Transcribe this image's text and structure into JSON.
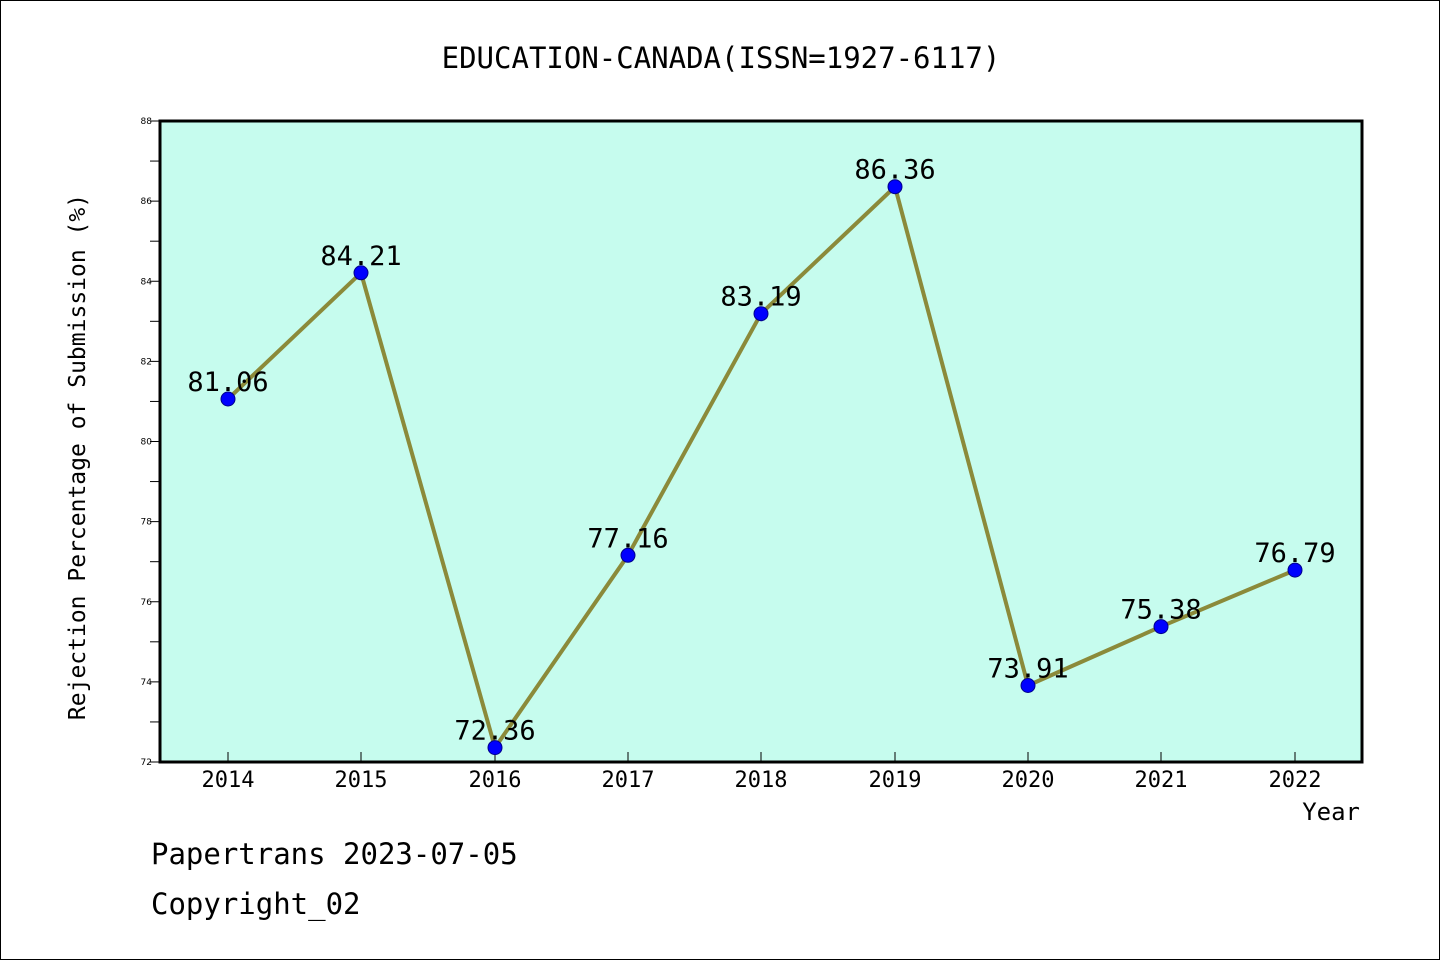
{
  "footer": {
    "line1": "Papertrans 2023-07-05",
    "line2": "Copyright_02"
  },
  "chart_data": {
    "type": "line",
    "title": "EDUCATION-CANADA(ISSN=1927-6117)",
    "xlabel": "Year",
    "ylabel": "Rejection Percentage of Submission (%)",
    "categories": [
      "2014",
      "2015",
      "2016",
      "2017",
      "2018",
      "2019",
      "2020",
      "2021",
      "2022"
    ],
    "series": [
      {
        "values": [
          81.06,
          84.21,
          72.36,
          77.16,
          83.19,
          86.36,
          73.91,
          75.38,
          76.79
        ],
        "labels": [
          "81.06",
          "84.21",
          "72.36",
          "77.16",
          "83.19",
          "86.36",
          "73.91",
          "75.38",
          "76.79"
        ]
      }
    ],
    "ylim": [
      72,
      88
    ],
    "yticks": [
      72,
      74,
      76,
      78,
      80,
      82,
      84,
      86,
      88
    ],
    "ytick_labels": [
      "72",
      "74",
      "76",
      "78",
      "80",
      "82",
      "84",
      "86",
      "88"
    ],
    "grid": false,
    "colors": {
      "plot_background": "#c6fcee",
      "line": "#8b8a3a",
      "marker": "#0000ff",
      "marker_edge": "#00008b",
      "axes": "#000000"
    }
  }
}
